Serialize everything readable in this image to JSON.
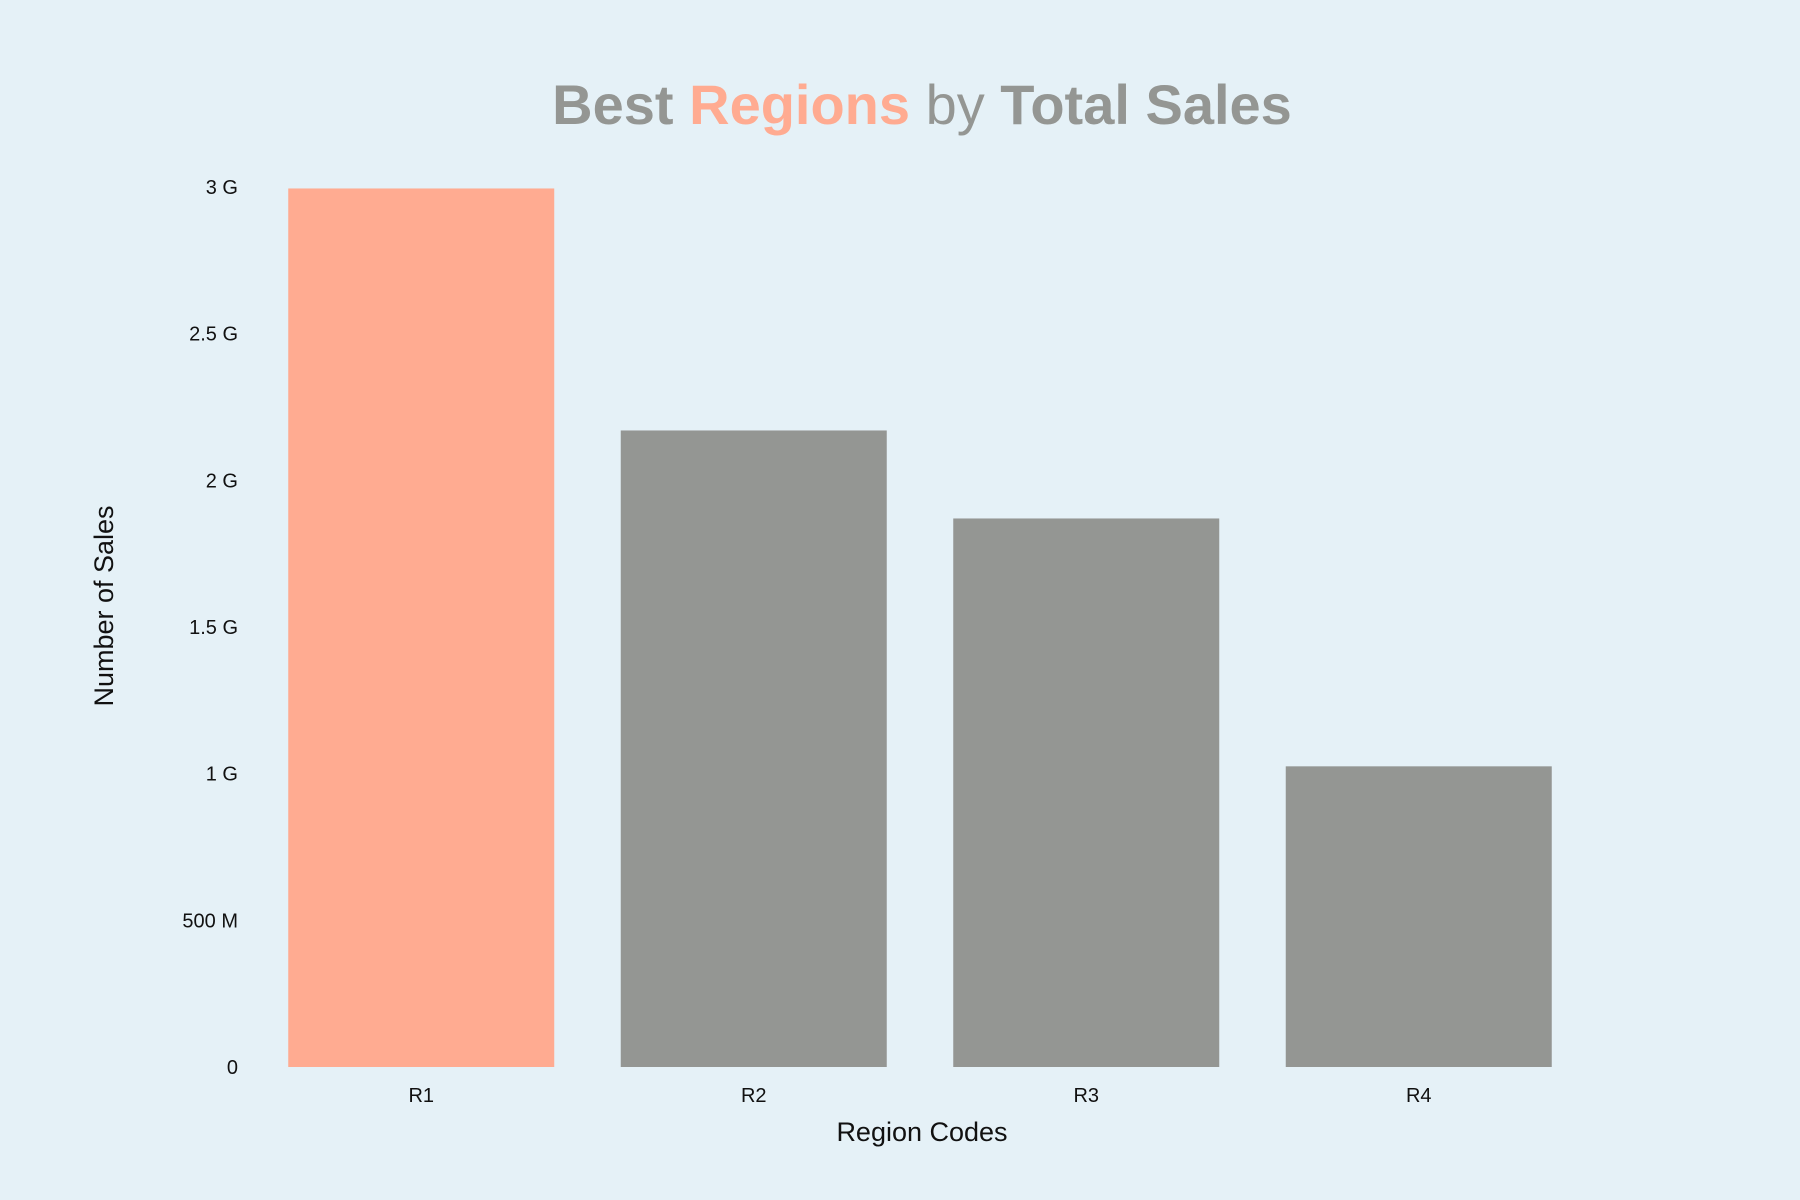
{
  "colors": {
    "background": "#e5f1f7",
    "highlight": "#ffab91",
    "muted": "#949693",
    "text": "#111111"
  },
  "chart_data": {
    "type": "bar",
    "title": {
      "parts": [
        {
          "text": "Best",
          "weight": "bold",
          "color": "#949693"
        },
        {
          "text": "Regions",
          "weight": "bold",
          "color": "#ffab91"
        },
        {
          "text": "by",
          "weight": "normal",
          "color": "#949693"
        },
        {
          "text": "Total Sales",
          "weight": "bold",
          "color": "#949693"
        }
      ]
    },
    "xlabel": "Region Codes",
    "ylabel": "Number of Sales",
    "categories": [
      "R1",
      "R2",
      "R3",
      "R4"
    ],
    "values": [
      2995000000,
      2170000000,
      1870000000,
      1025000000
    ],
    "bar_colors": [
      "#ffab91",
      "#949693",
      "#949693",
      "#949693"
    ],
    "ylim": [
      0,
      3000000000
    ],
    "yticks": [
      0,
      500000000,
      1000000000,
      1500000000,
      2000000000,
      2500000000,
      3000000000
    ],
    "ytick_labels": [
      "0",
      "500 M",
      "1 G",
      "1.5 G",
      "2 G",
      "2.5 G",
      "3 G"
    ],
    "grid": false,
    "legend": "none"
  }
}
